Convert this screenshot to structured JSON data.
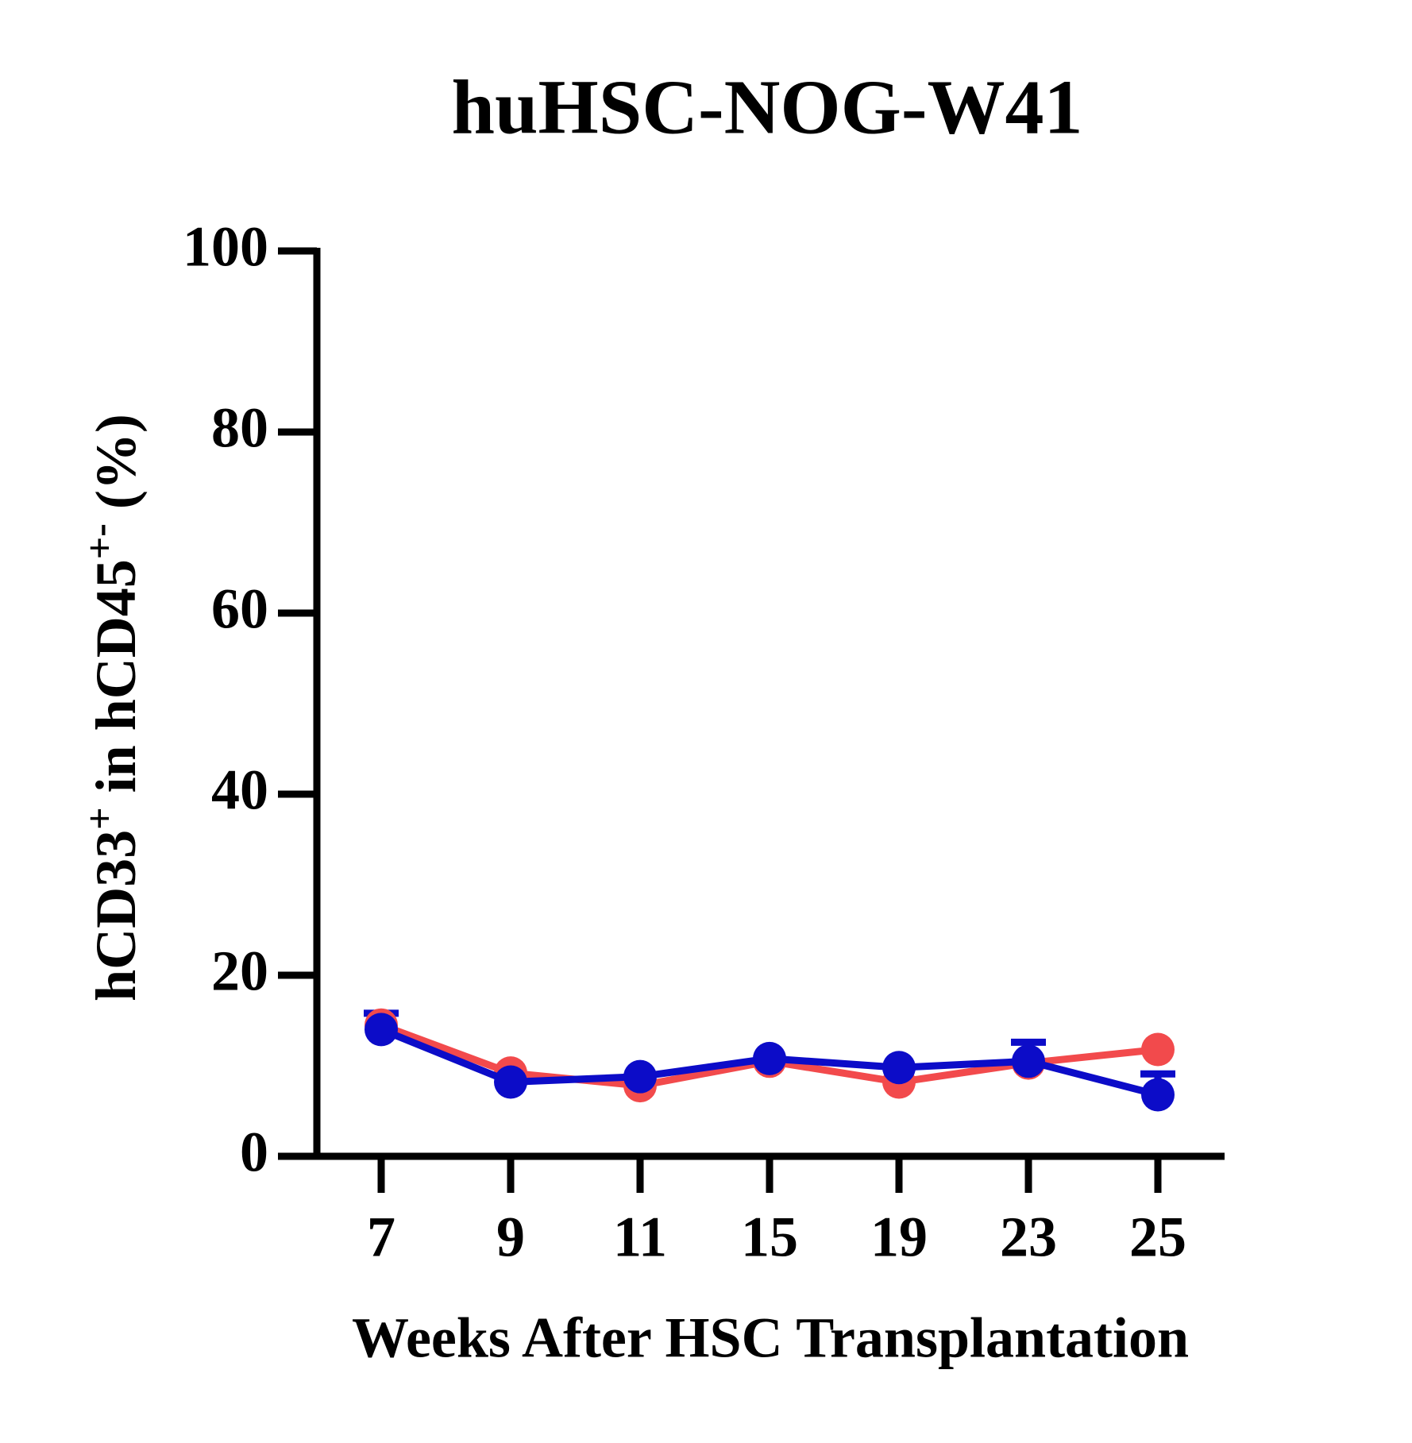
{
  "chart_data": {
    "type": "line",
    "title": "huHSC-NOG-W41",
    "xlabel": "Weeks After HSC Transplantation",
    "ylabel_parts": [
      {
        "text": "hCD33"
      },
      {
        "text": "+",
        "sup": true
      },
      {
        "text": " in hCD45"
      },
      {
        "text": "+-",
        "sup": true
      },
      {
        "text": "  (%)"
      }
    ],
    "categories": [
      "7",
      "9",
      "11",
      "15",
      "19",
      "23",
      "25"
    ],
    "series": [
      {
        "color": "#f24a4c",
        "values": [
          14.5,
          9.2,
          7.8,
          10.5,
          8.2,
          10.3,
          11.8
        ]
      },
      {
        "color": "#0c0cc8",
        "values": [
          14,
          8.2,
          8.8,
          10.8,
          9.8,
          10.5,
          6.8
        ],
        "errors": [
          1.8,
          null,
          null,
          null,
          null,
          2.1,
          2.3
        ]
      }
    ],
    "ylim": [
      0,
      100
    ],
    "yticks": [
      0,
      20,
      40,
      60,
      80,
      100
    ],
    "grid": false
  }
}
